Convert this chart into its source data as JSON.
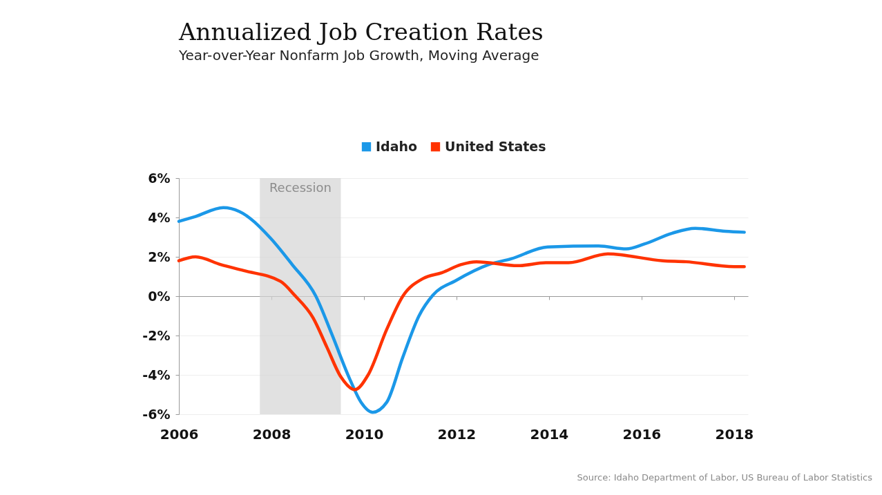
{
  "chart_data": {
    "type": "line",
    "title": "Annualized Job Creation Rates",
    "subtitle": "Year-over-Year Nonfarm Job Growth, Moving Average",
    "xlim": [
      2006,
      2018.3
    ],
    "xticks": [
      2006,
      2008,
      2010,
      2012,
      2014,
      2016,
      2018
    ],
    "ylim": [
      -6,
      6
    ],
    "yticks": [
      {
        "value": -6,
        "label": "-6%"
      },
      {
        "value": -4,
        "label": "-4%"
      },
      {
        "value": -2,
        "label": "-2%"
      },
      {
        "value": 0,
        "label": "0%"
      },
      {
        "value": 2,
        "label": "2%"
      },
      {
        "value": 4,
        "label": "4%"
      },
      {
        "value": 6,
        "label": "6%"
      }
    ],
    "legend": "top",
    "grid": "y",
    "line_style": "solid",
    "bands": [
      {
        "axis": "x",
        "from": 2007.75,
        "to": 2009.5,
        "label": "Recession",
        "color": "#d4d4d4"
      }
    ],
    "annotations": [
      "Source: Idaho Department of Labor, US Bureau of Labor Statistics"
    ],
    "series": [
      {
        "name": "Idaho",
        "color": "#1b98e8",
        "x": [
          2006,
          2006.36,
          2006.96,
          2007.31,
          2007.96,
          2008.45,
          2008.96,
          2009.3,
          2009.7,
          2009.94,
          2010.19,
          2010.49,
          2010.84,
          2011.19,
          2011.49,
          2011.99,
          2012.69,
          2013.18,
          2013.97,
          2015.07,
          2015.67,
          2016.06,
          2016.66,
          2017.16,
          2017.81,
          2018.22
        ],
        "values": [
          3.8,
          4.05,
          4.5,
          4.3,
          3.0,
          1.6,
          0,
          -1.9,
          -4.25,
          -5.4,
          -5.9,
          -5.4,
          -3.1,
          -1.0,
          0.05,
          0.8,
          1.6,
          1.9,
          2.5,
          2.55,
          2.4,
          2.65,
          3.2,
          3.45,
          3.3,
          3.25
        ]
      },
      {
        "name": "United States",
        "color": "#ff3300",
        "x": [
          2006,
          2006.36,
          2006.91,
          2007.4,
          2008.2,
          2008.5,
          2008.9,
          2009.2,
          2009.5,
          2009.8,
          2010.09,
          2010.49,
          2010.84,
          2011.28,
          2011.69,
          2012.09,
          2012.43,
          2013.33,
          2013.93,
          2014.42,
          2015.27,
          2016.46,
          2016.96,
          2018.0,
          2018.22
        ],
        "values": [
          1.8,
          2.0,
          1.6,
          1.3,
          0.75,
          0.05,
          -1.1,
          -2.6,
          -4.1,
          -4.75,
          -4.0,
          -1.7,
          0,
          0.9,
          1.2,
          1.6,
          1.75,
          1.55,
          1.7,
          1.7,
          2.15,
          1.8,
          1.75,
          1.5,
          1.5
        ]
      }
    ]
  }
}
